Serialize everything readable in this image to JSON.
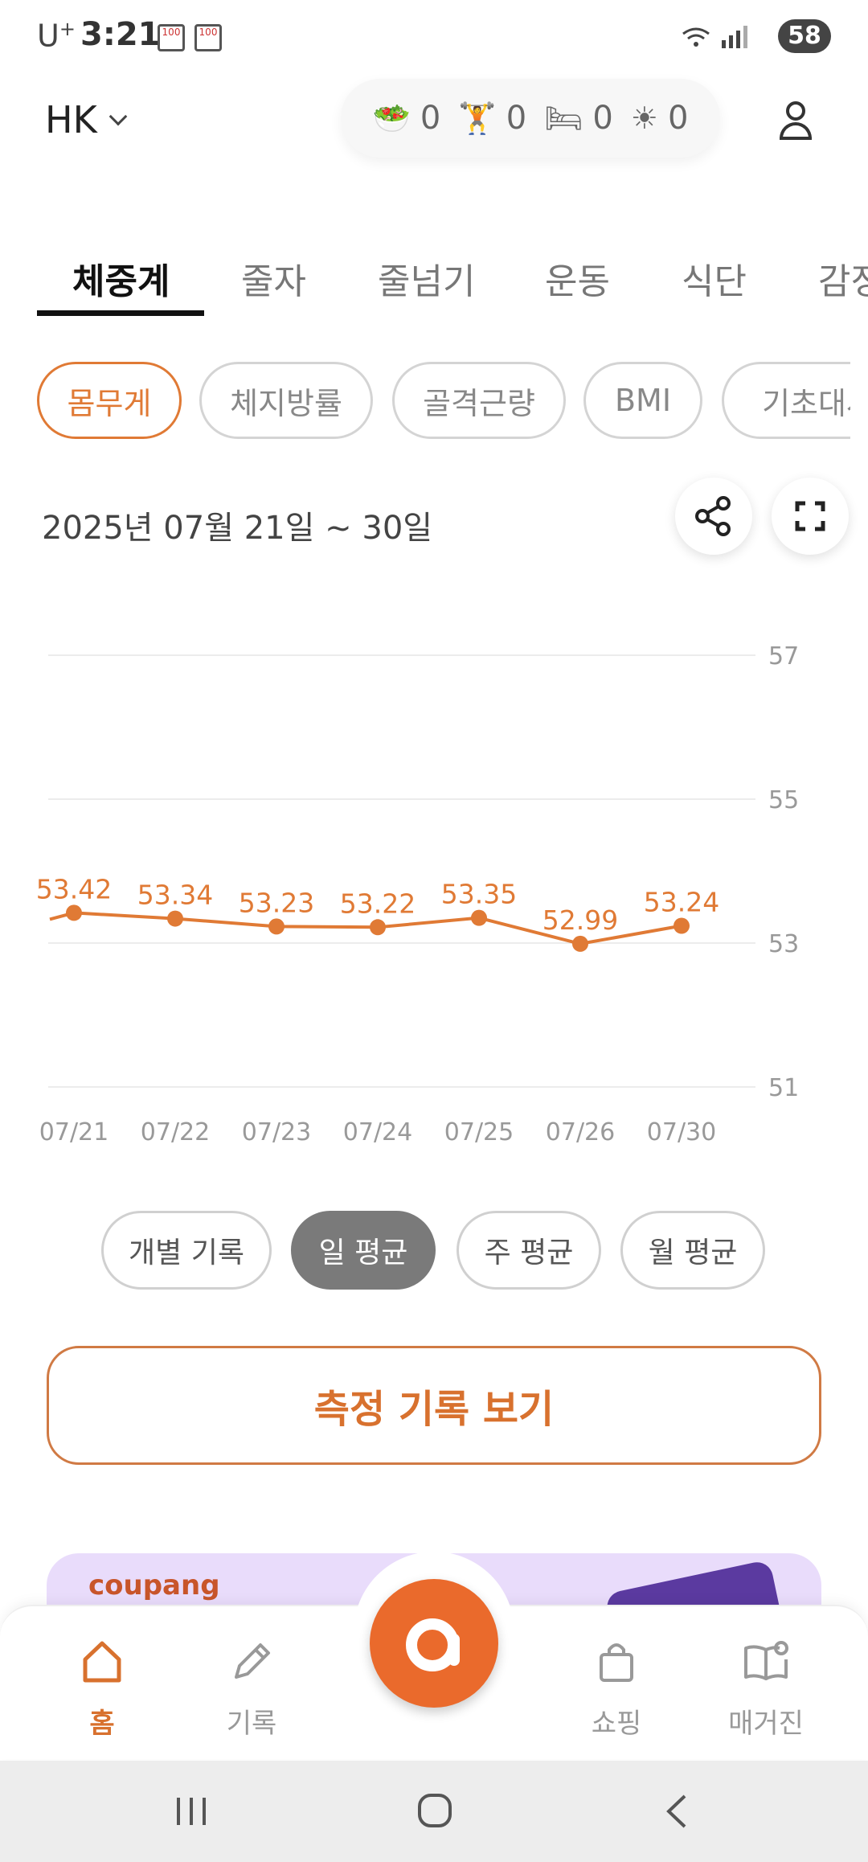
{
  "status_bar": {
    "carrier": "U",
    "carrier_sup": "+",
    "time": "3:21",
    "battery": "58"
  },
  "header": {
    "profile_name": "HK",
    "summary": [
      {
        "icon": "salad-emoji",
        "glyph": "🥗",
        "count": "0"
      },
      {
        "icon": "weightlifter-emoji",
        "glyph": "🏋",
        "count": "0"
      },
      {
        "icon": "bed-emoji",
        "glyph": "🛏",
        "count": "0"
      },
      {
        "icon": "sun-emoji",
        "glyph": "☀",
        "count": "0"
      }
    ]
  },
  "category_tabs": [
    "체중계",
    "줄자",
    "줄넘기",
    "운동",
    "식단",
    "감정"
  ],
  "active_category": 0,
  "metric_chips": [
    "몸무게",
    "체지방률",
    "골격근량",
    "BMI",
    "기초대사"
  ],
  "active_metric": 0,
  "date_range": "2025년 07월 21일 ~ 30일",
  "chart_data": {
    "type": "line",
    "x": [
      "07/21",
      "07/22",
      "07/23",
      "07/24",
      "07/25",
      "07/26",
      "07/30"
    ],
    "series": [
      {
        "values": [
          53.42,
          53.34,
          53.23,
          53.22,
          53.35,
          52.99,
          53.24
        ]
      }
    ],
    "data_labels": [
      "53.42",
      "53.34",
      "53.23",
      "53.22",
      "53.35",
      "52.99",
      "53.24"
    ],
    "y_ticks": [
      "57",
      "55",
      "53",
      "51"
    ],
    "ylim": [
      51,
      57
    ],
    "color": "#e07a35",
    "grid": true
  },
  "period_buttons": [
    "개별 기록",
    "일 평균",
    "주 평균",
    "월 평균"
  ],
  "active_period": 1,
  "view_records_label": "측정 기록 보기",
  "banner": {
    "logo": "coupang"
  },
  "bottom_nav": [
    {
      "label": "홈",
      "icon": "home-icon"
    },
    {
      "label": "기록",
      "icon": "pencil-icon"
    },
    {
      "label": "쇼핑",
      "icon": "shopping-bag-icon"
    },
    {
      "label": "매거진",
      "icon": "magazine-icon"
    }
  ],
  "fab_glyph": "a",
  "colors": {
    "accent": "#e07a35",
    "fab": "#ea6a2c"
  }
}
